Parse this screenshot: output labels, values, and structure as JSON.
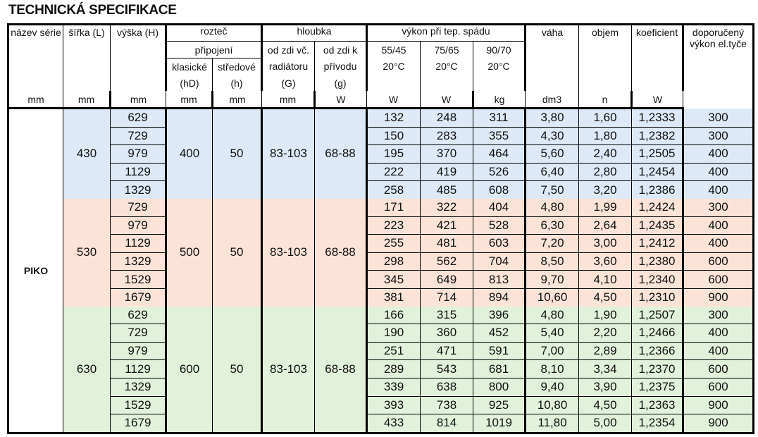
{
  "title": "TECHNICKÁ SPECIFIKACE",
  "header": {
    "nazev": "název série",
    "sirka": "šířka (L)",
    "vyska": "výška (H)",
    "roztec": "rozteč",
    "pripojeni": "připojení",
    "klasicke": "klasické",
    "stredove": "středové",
    "hD": "(hD)",
    "h": "(h)",
    "hloubka": "hloubka",
    "od_zdi_vc": "od zdi  vč.",
    "radiatoru": "radiátoru",
    "G": "(G)",
    "od_zdi_k": "od zdi  k",
    "privodu": "přívodu",
    "g": "(g)",
    "vykon": "výkon při tep.  spádu",
    "t1": "55/45",
    "t2": "75/65",
    "t3": "90/70",
    "c1": "20°C",
    "c2": "20°C",
    "c3": "20°C",
    "vaha": "váha",
    "objem": "objem",
    "koeficient": "koeficient",
    "doporuceny": "doporučený výkon el.tyče",
    "units": [
      "mm",
      "mm",
      "mm",
      "mm",
      "mm",
      "mm",
      "W",
      "W",
      "W",
      "kg",
      "dm3",
      "n",
      "W"
    ]
  },
  "series_name": "PIKO",
  "groups": [
    {
      "color": "#dde9f6",
      "sirka": "430",
      "hD": "400",
      "h": "50",
      "G": "83-103",
      "g": "68-88",
      "rows": [
        [
          "629",
          "132",
          "248",
          "311",
          "3,80",
          "1,60",
          "1,2333",
          "300"
        ],
        [
          "729",
          "150",
          "283",
          "355",
          "4,30",
          "1,80",
          "1,2382",
          "300"
        ],
        [
          "979",
          "195",
          "370",
          "464",
          "5,60",
          "2,40",
          "1,2505",
          "400"
        ],
        [
          "1129",
          "222",
          "419",
          "526",
          "6,40",
          "2,80",
          "1,2454",
          "400"
        ],
        [
          "1329",
          "258",
          "485",
          "608",
          "7,50",
          "3,20",
          "1,2386",
          "400"
        ]
      ]
    },
    {
      "color": "#fbe3d7",
      "sirka": "530",
      "hD": "500",
      "h": "50",
      "G": "83-103",
      "g": "68-88",
      "rows": [
        [
          "729",
          "171",
          "322",
          "404",
          "4,80",
          "1,99",
          "1,2424",
          "300"
        ],
        [
          "979",
          "223",
          "421",
          "528",
          "6,30",
          "2,64",
          "1,2435",
          "400"
        ],
        [
          "1129",
          "255",
          "481",
          "603",
          "7,20",
          "3,00",
          "1,2412",
          "400"
        ],
        [
          "1329",
          "298",
          "562",
          "704",
          "8,50",
          "3,60",
          "1,2380",
          "600"
        ],
        [
          "1529",
          "345",
          "649",
          "813",
          "9,70",
          "4,10",
          "1,2340",
          "600"
        ],
        [
          "1679",
          "381",
          "714",
          "894",
          "10,60",
          "4,50",
          "1,2310",
          "900"
        ]
      ]
    },
    {
      "color": "#e2f1da",
      "sirka": "630",
      "hD": "600",
      "h": "50",
      "G": "83-103",
      "g": "68-88",
      "rows": [
        [
          "629",
          "166",
          "315",
          "396",
          "4,80",
          "1,90",
          "1,2507",
          "300"
        ],
        [
          "729",
          "190",
          "360",
          "452",
          "5,40",
          "2,20",
          "1,2466",
          "400"
        ],
        [
          "979",
          "251",
          "471",
          "591",
          "7,00",
          "2,89",
          "1,2366",
          "400"
        ],
        [
          "1129",
          "289",
          "543",
          "681",
          "8,10",
          "3,34",
          "1,2370",
          "600"
        ],
        [
          "1329",
          "339",
          "638",
          "800",
          "9,40",
          "3,90",
          "1,2375",
          "600"
        ],
        [
          "1529",
          "393",
          "738",
          "925",
          "10,80",
          "4,50",
          "1,2363",
          "900"
        ],
        [
          "1679",
          "433",
          "814",
          "1019",
          "11,80",
          "5,00",
          "1,2354",
          "900"
        ]
      ]
    }
  ]
}
